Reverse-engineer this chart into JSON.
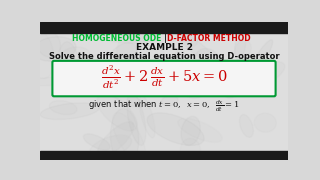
{
  "background_color": "#d8d8d8",
  "swirl_color": "#c0c0c0",
  "border_color": "#1a1a1a",
  "title_green": "HOMOGENEOUS ODE ",
  "title_sep": "| ",
  "title_red": "D-FACTOR METHOD",
  "title_line2": "EXAMPLE 2",
  "subtitle": "Solve the differential equation using D-operator",
  "green_color": "#00bb33",
  "red_color": "#cc0000",
  "sep_color": "#333333",
  "black_color": "#111111",
  "white_color": "#ffffff",
  "box_edge_color": "#009933",
  "box_face_color": "#f5f5f5"
}
